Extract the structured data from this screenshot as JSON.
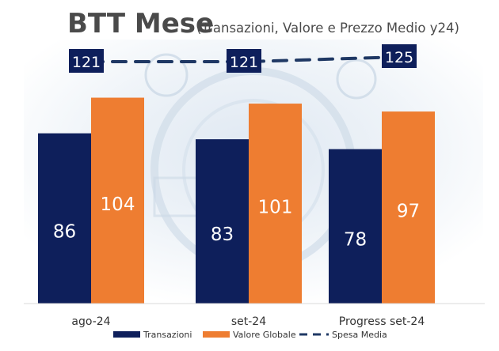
{
  "chart_data": {
    "type": "bar",
    "title": "BTT Mese",
    "subtitle": "(Transazioni, Valore e Prezzo Medio y24)",
    "categories": [
      "ago-24",
      "set-24",
      "Progress set-24"
    ],
    "series": [
      {
        "name": "Transazioni",
        "values": [
          86,
          83,
          78
        ],
        "color": "#0e1f5b"
      },
      {
        "name": "Valore Globale",
        "values": [
          104,
          101,
          97
        ],
        "color": "#ee7d31"
      }
    ],
    "line_series": {
      "name": "Spesa Media",
      "values": [
        121,
        121,
        125
      ],
      "color": "#1f3864",
      "style": "dashed"
    },
    "ylim": [
      0,
      115
    ],
    "legend_position": "bottom",
    "grid": false
  }
}
